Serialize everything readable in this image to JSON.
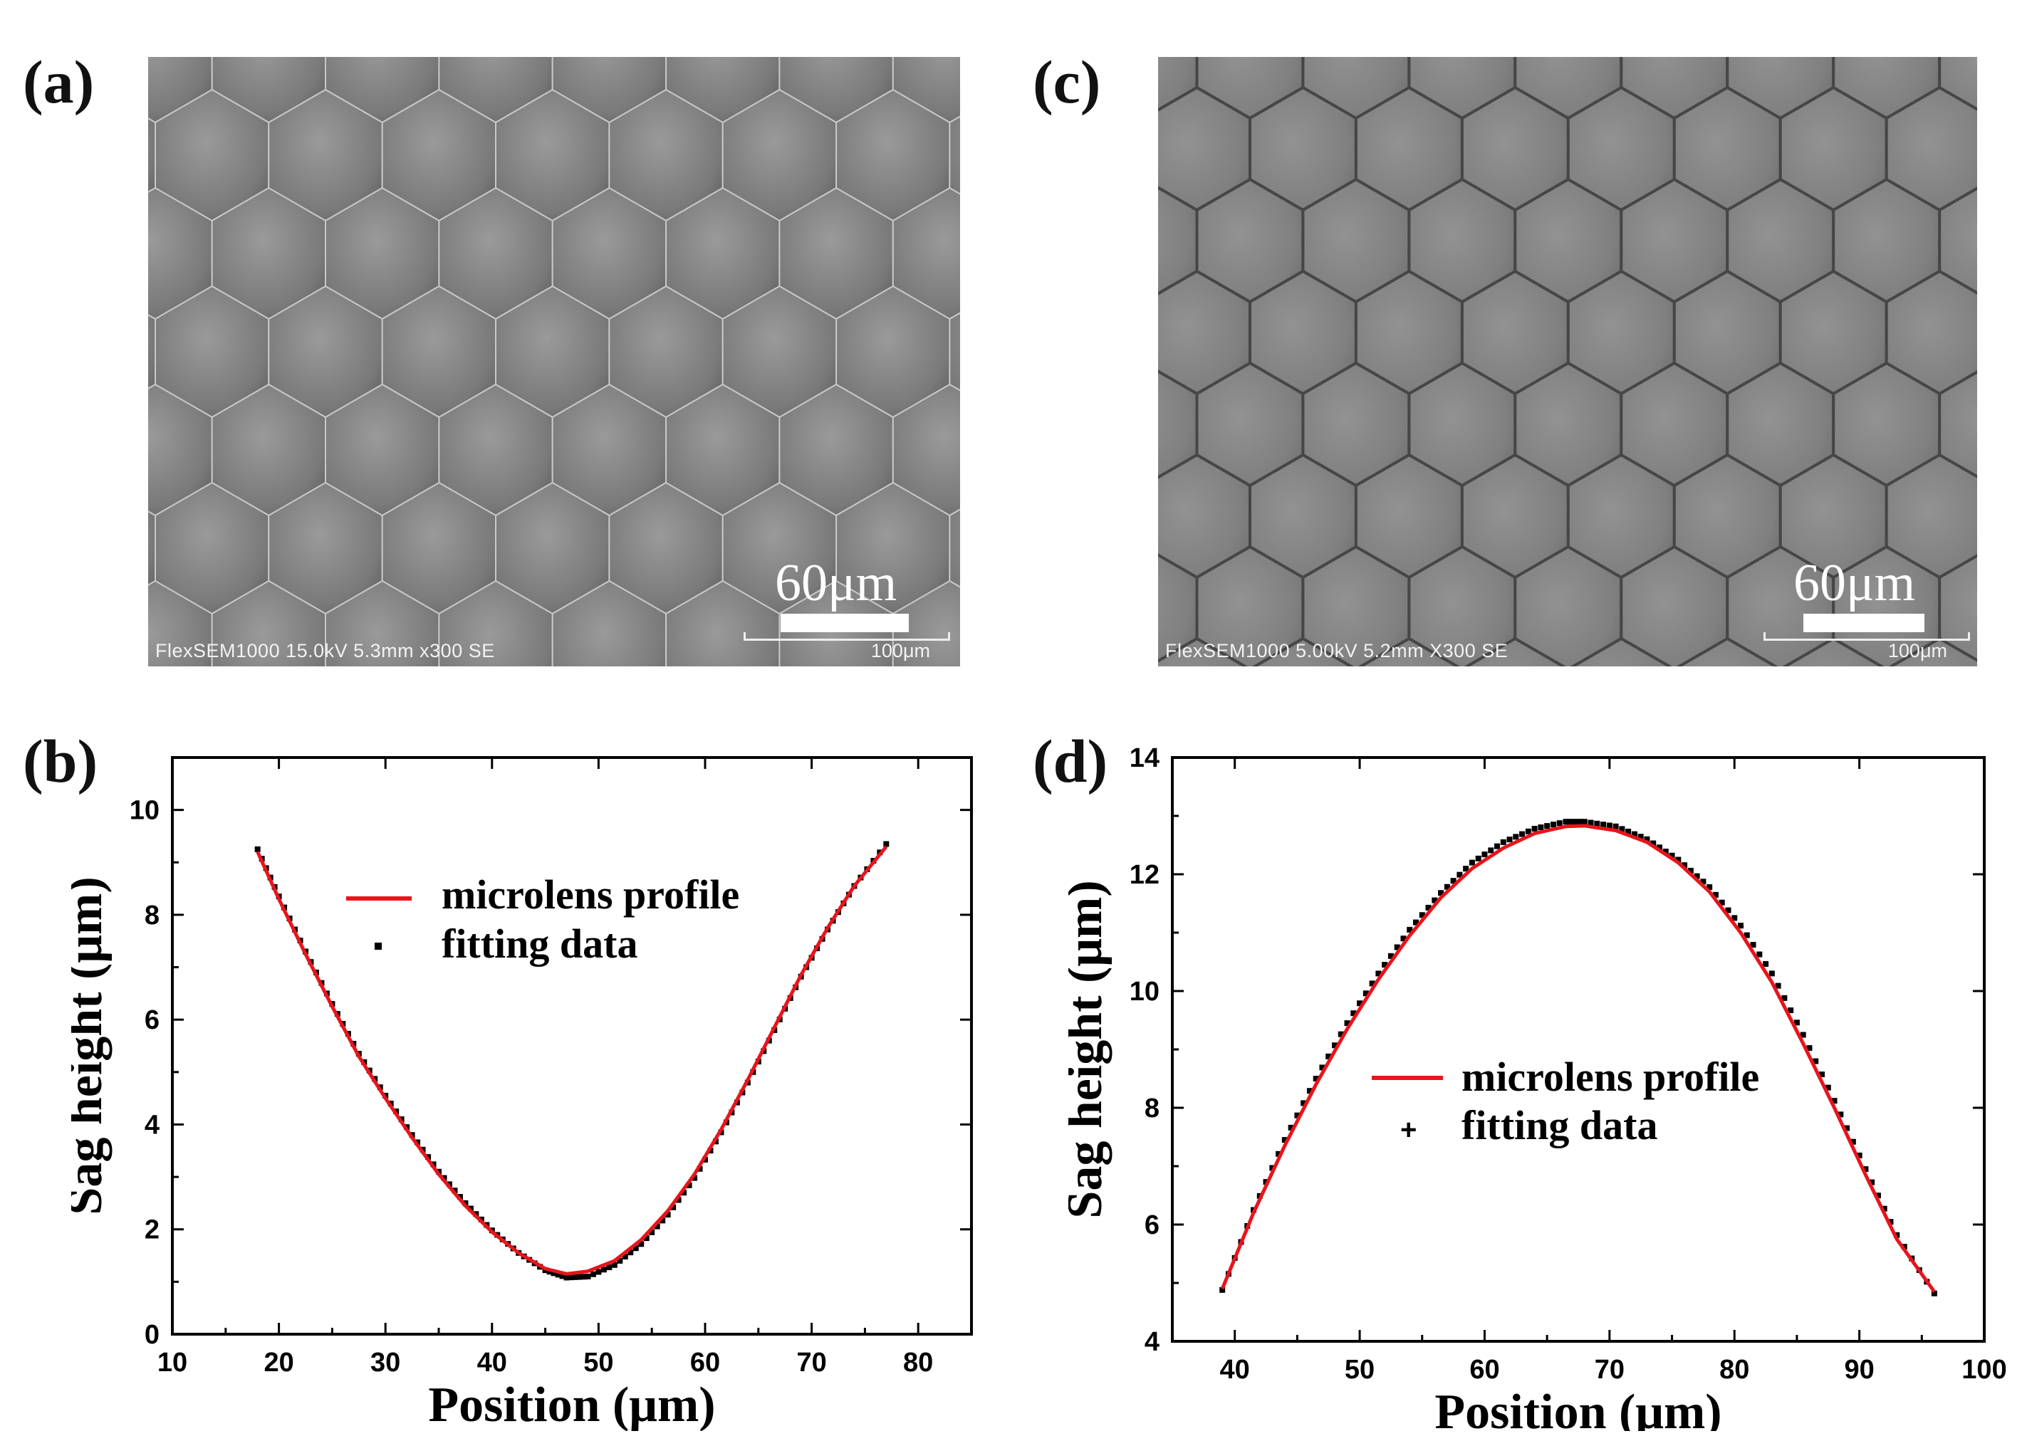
{
  "figure": {
    "panels": {
      "a": {
        "label": "(a)",
        "scale_bar_label": "60μm",
        "sem_info": "FlexSEM1000 15.0kV 5.3mm x300 SE",
        "sem_scale": "100μm"
      },
      "c": {
        "label": "(c)",
        "scale_bar_label": "60μm",
        "sem_info": "FlexSEM1000 5.00kV 5.2mm X300 SE",
        "sem_scale": "100μm"
      },
      "b": {
        "label": "(b)"
      },
      "d": {
        "label": "(d)"
      }
    }
  },
  "chart_data": [
    {
      "id": "b",
      "type": "line",
      "xlabel": "Position (μm)",
      "ylabel": "Sag height (μm)",
      "xlim": [
        10,
        85
      ],
      "ylim": [
        0,
        11
      ],
      "xticks": [
        10,
        20,
        30,
        40,
        50,
        60,
        70,
        80
      ],
      "yticks": [
        0,
        2,
        4,
        6,
        8,
        10
      ],
      "legend": "upper-center",
      "colors": {
        "profile": "#e8141b",
        "fit": "#000000"
      },
      "series": [
        {
          "name": "microlens profile",
          "style": "line",
          "x": [
            18,
            20,
            22.5,
            25,
            27.5,
            30,
            32.5,
            35,
            37.5,
            40,
            42.5,
            45,
            47,
            49,
            51.5,
            54,
            56.5,
            59,
            61.5,
            64,
            66.5,
            69,
            71.5,
            74,
            77
          ],
          "y": [
            9.2,
            8.3,
            7.25,
            6.25,
            5.3,
            4.5,
            3.75,
            3.05,
            2.45,
            1.95,
            1.55,
            1.25,
            1.15,
            1.2,
            1.4,
            1.8,
            2.35,
            3.05,
            3.9,
            4.85,
            5.85,
            6.85,
            7.75,
            8.55,
            9.3
          ]
        },
        {
          "name": "fitting data",
          "style": "markers",
          "x": [
            18,
            20,
            22.5,
            25,
            27.5,
            30,
            32.5,
            35,
            37.5,
            40,
            42.5,
            45,
            47,
            49,
            51.5,
            54,
            56.5,
            59,
            61.5,
            64,
            66.5,
            69,
            71.5,
            74,
            77
          ],
          "y": [
            9.25,
            8.35,
            7.3,
            6.3,
            5.35,
            4.55,
            3.8,
            3.1,
            2.5,
            1.98,
            1.55,
            1.22,
            1.08,
            1.1,
            1.32,
            1.72,
            2.28,
            2.98,
            3.85,
            4.8,
            5.8,
            6.82,
            7.72,
            8.55,
            9.35
          ]
        }
      ]
    },
    {
      "id": "d",
      "type": "line",
      "xlabel": "Position (μm)",
      "ylabel": "Sag height (μm)",
      "xlim": [
        35,
        100
      ],
      "ylim": [
        4,
        14
      ],
      "xticks": [
        40,
        50,
        60,
        70,
        80,
        90,
        100
      ],
      "yticks": [
        4,
        6,
        8,
        10,
        12,
        14
      ],
      "legend": "center-left",
      "colors": {
        "profile": "#e8141b",
        "fit": "#000000"
      },
      "series": [
        {
          "name": "microlens profile",
          "style": "line",
          "x": [
            39,
            41.5,
            44,
            46.5,
            49,
            51.5,
            54,
            56.5,
            59,
            61.5,
            64,
            66.5,
            68,
            70.5,
            73,
            75.5,
            78,
            80.5,
            83,
            85.5,
            88,
            90.5,
            93,
            96
          ],
          "y": [
            4.9,
            6.2,
            7.35,
            8.4,
            9.35,
            10.2,
            10.95,
            11.6,
            12.1,
            12.45,
            12.7,
            12.82,
            12.83,
            12.75,
            12.55,
            12.2,
            11.7,
            11.0,
            10.15,
            9.1,
            8.0,
            6.85,
            5.75,
            4.85
          ]
        },
        {
          "name": "fitting data",
          "style": "markers",
          "x": [
            39,
            41.5,
            44,
            46.5,
            49,
            51.5,
            54,
            56.5,
            59,
            61.5,
            64,
            66.5,
            68,
            70.5,
            73,
            75.5,
            78,
            80.5,
            83,
            85.5,
            88,
            90.5,
            93,
            96
          ],
          "y": [
            4.88,
            6.25,
            7.45,
            8.5,
            9.45,
            10.3,
            11.05,
            11.68,
            12.2,
            12.55,
            12.78,
            12.9,
            12.9,
            12.82,
            12.6,
            12.25,
            11.78,
            11.12,
            10.3,
            9.25,
            8.12,
            6.95,
            5.82,
            4.82
          ]
        }
      ]
    }
  ]
}
